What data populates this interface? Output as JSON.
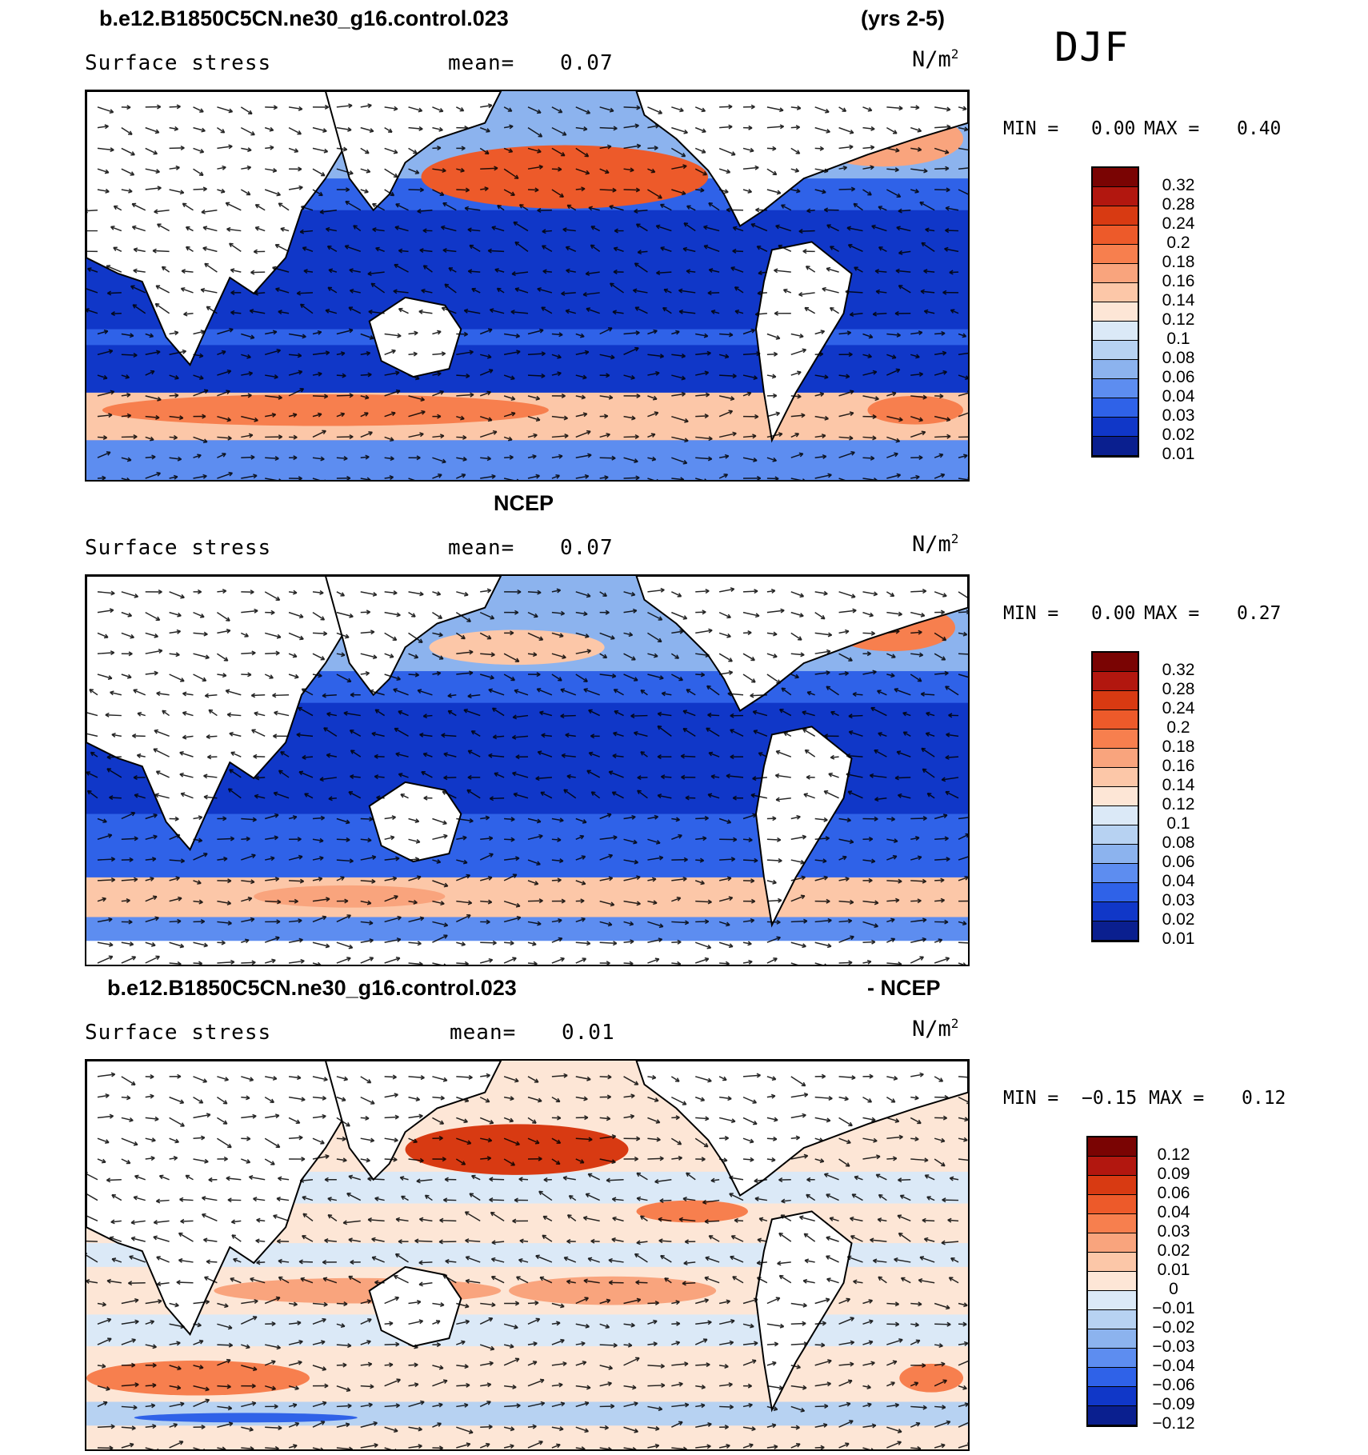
{
  "season": "DJF",
  "panels": [
    {
      "id": "model",
      "title_left": "b.e12.B1850C5CN.ne30_g16.control.023",
      "title_right": "(yrs 2-5)",
      "title_center": "",
      "variable": "Surface stress",
      "mean_label": "mean=",
      "mean_value": "0.07",
      "units": "N/m",
      "units_sup": "2",
      "min_label": "MIN =",
      "min_value": "0.00",
      "max_label": "MAX =",
      "max_value": "0.40",
      "legend": [
        "0.32",
        "0.28",
        "0.24",
        "0.2",
        "0.18",
        "0.16",
        "0.14",
        "0.12",
        "0.1",
        "0.08",
        "0.06",
        "0.04",
        "0.03",
        "0.02",
        "0.01"
      ],
      "colors": [
        "#7a0403",
        "#b2170f",
        "#d83a12",
        "#ed5a2a",
        "#f77f4e",
        "#f9a47d",
        "#fcc7a8",
        "#fde6d6",
        "#dbe9f7",
        "#b7d2f2",
        "#8cb3ee",
        "#5d8df0",
        "#2f62e8",
        "#1037c8",
        "#0a1f8f"
      ]
    },
    {
      "id": "obs",
      "title_left": "",
      "title_right": "",
      "title_center": "NCEP",
      "variable": "Surface stress",
      "mean_label": "mean=",
      "mean_value": "0.07",
      "units": "N/m",
      "units_sup": "2",
      "min_label": "MIN =",
      "min_value": "0.00",
      "max_label": "MAX =",
      "max_value": "0.27",
      "legend": [
        "0.32",
        "0.28",
        "0.24",
        "0.2",
        "0.18",
        "0.16",
        "0.14",
        "0.12",
        "0.1",
        "0.08",
        "0.06",
        "0.04",
        "0.03",
        "0.02",
        "0.01"
      ],
      "colors": [
        "#7a0403",
        "#b2170f",
        "#d83a12",
        "#ed5a2a",
        "#f77f4e",
        "#f9a47d",
        "#fcc7a8",
        "#fde6d6",
        "#dbe9f7",
        "#b7d2f2",
        "#8cb3ee",
        "#5d8df0",
        "#2f62e8",
        "#1037c8",
        "#0a1f8f"
      ]
    },
    {
      "id": "diff",
      "title_left": "b.e12.B1850C5CN.ne30_g16.control.023",
      "title_right": "- NCEP",
      "title_center": "",
      "variable": "Surface stress",
      "mean_label": "mean=",
      "mean_value": "0.01",
      "units": "N/m",
      "units_sup": "2",
      "min_label": "MIN =",
      "min_value": "−0.15",
      "max_label": "MAX =",
      "max_value": "0.12",
      "legend": [
        "0.12",
        "0.09",
        "0.06",
        "0.04",
        "0.03",
        "0.02",
        "0.01",
        "0",
        "−0.01",
        "−0.02",
        "−0.03",
        "−0.04",
        "−0.06",
        "−0.09",
        "−0.12"
      ],
      "colors": [
        "#7a0403",
        "#b2170f",
        "#d83a12",
        "#ed5a2a",
        "#f77f4e",
        "#f9a47d",
        "#fcc7a8",
        "#fde6d6",
        "#dbe9f7",
        "#b7d2f2",
        "#8cb3ee",
        "#5d8df0",
        "#2f62e8",
        "#1037c8",
        "#0a1f8f"
      ]
    }
  ]
}
